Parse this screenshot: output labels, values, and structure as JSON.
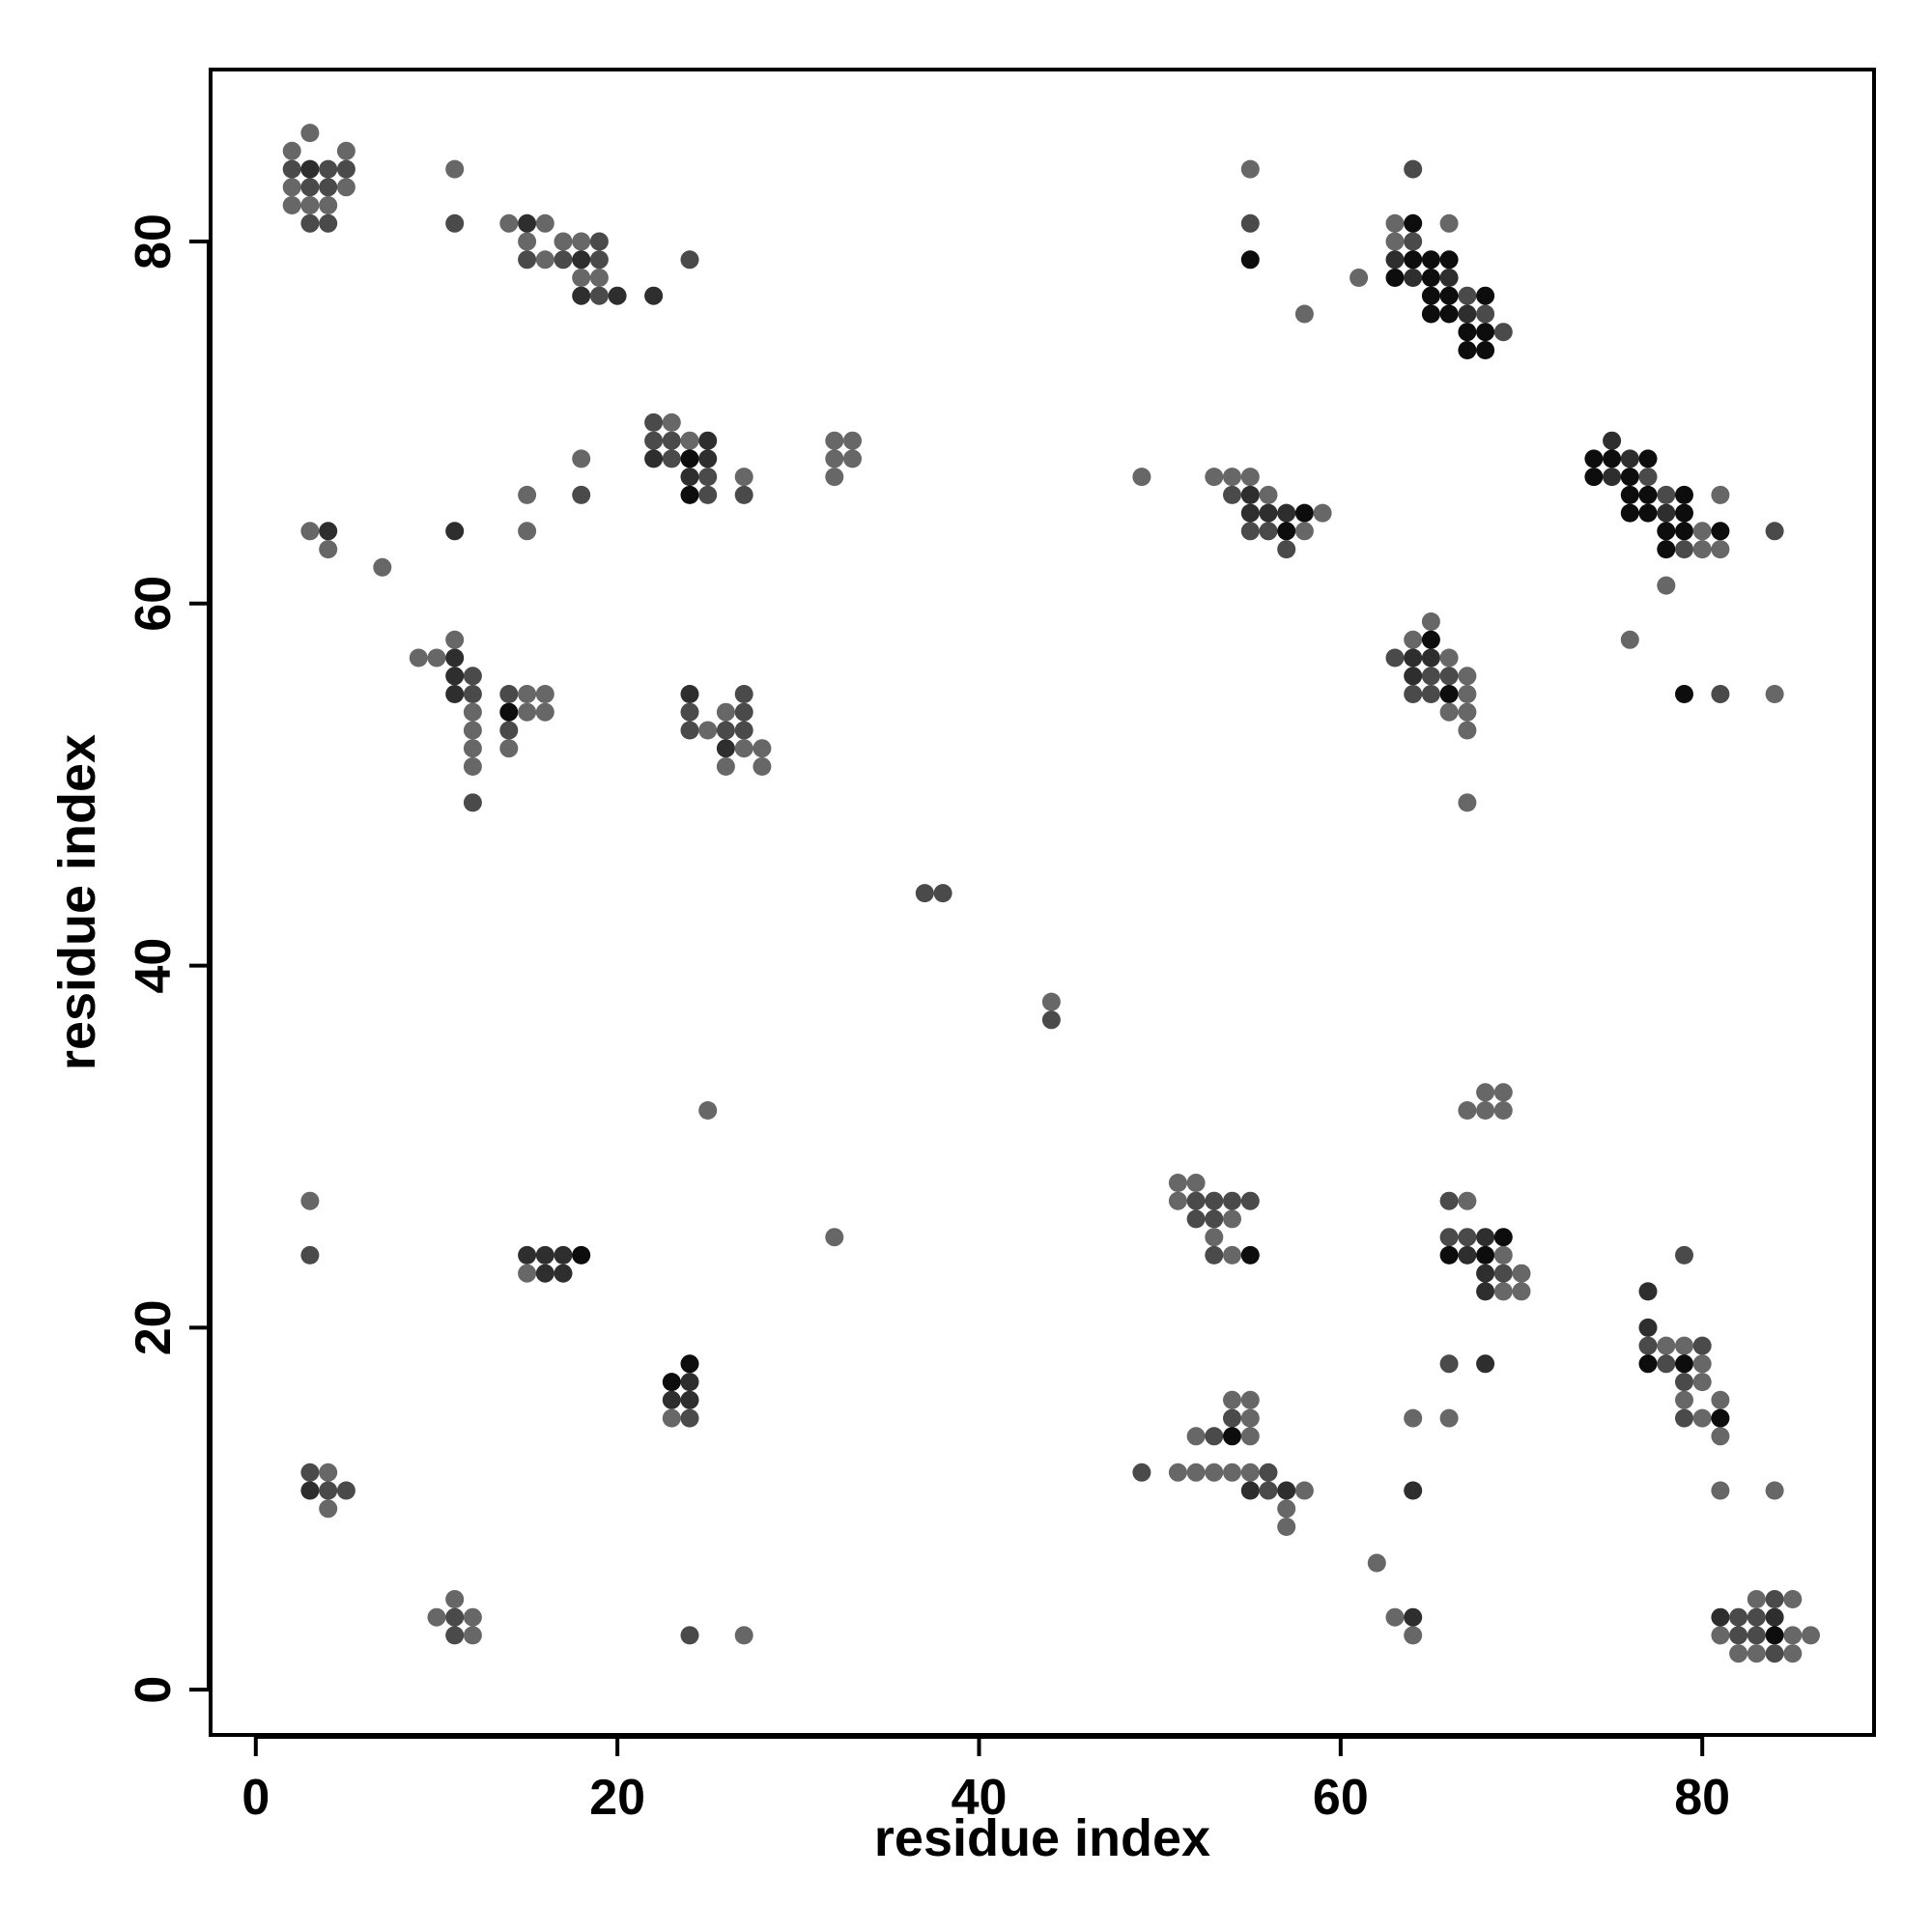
{
  "chart_data": {
    "type": "scatter",
    "title": "",
    "xlabel": "residue index",
    "ylabel": "residue index",
    "xlim": [
      -2.5,
      89.5
    ],
    "ylim": [
      -2.5,
      89.5
    ],
    "xticks": [
      0,
      20,
      40,
      60,
      80
    ],
    "yticks": [
      0,
      20,
      40,
      60,
      80
    ],
    "grid": false,
    "legend": "none",
    "shade_colors": [
      "#0d0d0d",
      "#2e2e2e",
      "#4a4a4a",
      "#676767"
    ],
    "points": [
      [
        2,
        85,
        3
      ],
      [
        3,
        86,
        3
      ],
      [
        5,
        85,
        3
      ],
      [
        2,
        84,
        2
      ],
      [
        3,
        84,
        1
      ],
      [
        4,
        84,
        2
      ],
      [
        5,
        84,
        2
      ],
      [
        2,
        83,
        3
      ],
      [
        3,
        83,
        2
      ],
      [
        4,
        83,
        2
      ],
      [
        5,
        83,
        3
      ],
      [
        2,
        82,
        3
      ],
      [
        3,
        82,
        3
      ],
      [
        4,
        82,
        3
      ],
      [
        3,
        81,
        2
      ],
      [
        4,
        81,
        2
      ],
      [
        11,
        84,
        3
      ],
      [
        11,
        81,
        2
      ],
      [
        14,
        81,
        3
      ],
      [
        15,
        81,
        1
      ],
      [
        16,
        81,
        3
      ],
      [
        15,
        80,
        3
      ],
      [
        17,
        80,
        3
      ],
      [
        18,
        80,
        3
      ],
      [
        19,
        80,
        2
      ],
      [
        15,
        79,
        2
      ],
      [
        16,
        79,
        3
      ],
      [
        17,
        79,
        2
      ],
      [
        18,
        79,
        1
      ],
      [
        19,
        79,
        2
      ],
      [
        18,
        78,
        3
      ],
      [
        19,
        78,
        3
      ],
      [
        18,
        77,
        1
      ],
      [
        19,
        77,
        2
      ],
      [
        20,
        77,
        1
      ],
      [
        22,
        77,
        1
      ],
      [
        24,
        79,
        2
      ],
      [
        55,
        84,
        3
      ],
      [
        55,
        81,
        2
      ],
      [
        55,
        79,
        0
      ],
      [
        58,
        76,
        3
      ],
      [
        61,
        78,
        3
      ],
      [
        64,
        84,
        2
      ],
      [
        63,
        81,
        3
      ],
      [
        64,
        81,
        0
      ],
      [
        66,
        81,
        3
      ],
      [
        63,
        80,
        3
      ],
      [
        64,
        80,
        2
      ],
      [
        63,
        79,
        1
      ],
      [
        64,
        79,
        0
      ],
      [
        65,
        79,
        0
      ],
      [
        66,
        79,
        0
      ],
      [
        63,
        78,
        0
      ],
      [
        64,
        78,
        1
      ],
      [
        65,
        78,
        0
      ],
      [
        66,
        78,
        1
      ],
      [
        65,
        77,
        0
      ],
      [
        66,
        77,
        0
      ],
      [
        67,
        77,
        2
      ],
      [
        68,
        77,
        0
      ],
      [
        65,
        76,
        0
      ],
      [
        66,
        76,
        0
      ],
      [
        67,
        76,
        1
      ],
      [
        68,
        76,
        2
      ],
      [
        67,
        75,
        0
      ],
      [
        68,
        75,
        0
      ],
      [
        69,
        75,
        2
      ],
      [
        67,
        74,
        0
      ],
      [
        68,
        74,
        0
      ],
      [
        22,
        70,
        2
      ],
      [
        23,
        70,
        3
      ],
      [
        22,
        69,
        2
      ],
      [
        23,
        69,
        2
      ],
      [
        24,
        69,
        3
      ],
      [
        25,
        69,
        1
      ],
      [
        22,
        68,
        1
      ],
      [
        23,
        68,
        2
      ],
      [
        24,
        68,
        0
      ],
      [
        25,
        68,
        1
      ],
      [
        24,
        67,
        1
      ],
      [
        25,
        67,
        2
      ],
      [
        24,
        66,
        0
      ],
      [
        25,
        66,
        2
      ],
      [
        27,
        67,
        3
      ],
      [
        27,
        66,
        2
      ],
      [
        32,
        69,
        3
      ],
      [
        33,
        69,
        3
      ],
      [
        32,
        68,
        3
      ],
      [
        33,
        68,
        3
      ],
      [
        32,
        67,
        3
      ],
      [
        18,
        68,
        3
      ],
      [
        18,
        66,
        2
      ],
      [
        15,
        66,
        3
      ],
      [
        15,
        64,
        3
      ],
      [
        11,
        64,
        1
      ],
      [
        3,
        64,
        3
      ],
      [
        4,
        64,
        1
      ],
      [
        4,
        63,
        3
      ],
      [
        7,
        62,
        3
      ],
      [
        49,
        67,
        3
      ],
      [
        53,
        67,
        3
      ],
      [
        54,
        67,
        3
      ],
      [
        55,
        67,
        3
      ],
      [
        54,
        66,
        2
      ],
      [
        55,
        66,
        1
      ],
      [
        56,
        66,
        3
      ],
      [
        55,
        65,
        1
      ],
      [
        56,
        65,
        1
      ],
      [
        57,
        65,
        1
      ],
      [
        58,
        65,
        0
      ],
      [
        59,
        65,
        3
      ],
      [
        55,
        64,
        2
      ],
      [
        56,
        64,
        2
      ],
      [
        57,
        64,
        0
      ],
      [
        58,
        64,
        3
      ],
      [
        57,
        63,
        2
      ],
      [
        75,
        69,
        1
      ],
      [
        74,
        68,
        0
      ],
      [
        75,
        68,
        0
      ],
      [
        76,
        68,
        1
      ],
      [
        77,
        68,
        0
      ],
      [
        74,
        67,
        0
      ],
      [
        75,
        67,
        1
      ],
      [
        76,
        67,
        0
      ],
      [
        77,
        67,
        2
      ],
      [
        76,
        66,
        0
      ],
      [
        77,
        66,
        0
      ],
      [
        78,
        66,
        2
      ],
      [
        79,
        66,
        0
      ],
      [
        81,
        66,
        3
      ],
      [
        76,
        65,
        0
      ],
      [
        77,
        65,
        0
      ],
      [
        78,
        65,
        1
      ],
      [
        79,
        65,
        0
      ],
      [
        78,
        64,
        0
      ],
      [
        79,
        64,
        0
      ],
      [
        80,
        64,
        3
      ],
      [
        81,
        64,
        0
      ],
      [
        84,
        64,
        2
      ],
      [
        78,
        63,
        0
      ],
      [
        79,
        63,
        2
      ],
      [
        80,
        63,
        3
      ],
      [
        81,
        63,
        3
      ],
      [
        78,
        61,
        3
      ],
      [
        76,
        58,
        3
      ],
      [
        79,
        55,
        0
      ],
      [
        81,
        55,
        2
      ],
      [
        84,
        55,
        3
      ],
      [
        9,
        57,
        3
      ],
      [
        10,
        57,
        3
      ],
      [
        11,
        57,
        1
      ],
      [
        11,
        58,
        3
      ],
      [
        11,
        56,
        1
      ],
      [
        12,
        56,
        2
      ],
      [
        11,
        55,
        1
      ],
      [
        12,
        55,
        2
      ],
      [
        12,
        54,
        3
      ],
      [
        12,
        53,
        3
      ],
      [
        12,
        52,
        3
      ],
      [
        12,
        51,
        3
      ],
      [
        12,
        49,
        2
      ],
      [
        14,
        55,
        2
      ],
      [
        15,
        55,
        3
      ],
      [
        16,
        55,
        3
      ],
      [
        14,
        54,
        0
      ],
      [
        15,
        54,
        3
      ],
      [
        16,
        54,
        3
      ],
      [
        14,
        53,
        2
      ],
      [
        14,
        52,
        3
      ],
      [
        24,
        55,
        1
      ],
      [
        24,
        54,
        2
      ],
      [
        24,
        53,
        2
      ],
      [
        25,
        53,
        3
      ],
      [
        27,
        55,
        2
      ],
      [
        26,
        54,
        3
      ],
      [
        27,
        54,
        2
      ],
      [
        26,
        53,
        2
      ],
      [
        27,
        53,
        2
      ],
      [
        26,
        52,
        1
      ],
      [
        27,
        52,
        3
      ],
      [
        28,
        52,
        3
      ],
      [
        26,
        51,
        3
      ],
      [
        28,
        51,
        3
      ],
      [
        65,
        59,
        3
      ],
      [
        64,
        58,
        3
      ],
      [
        65,
        58,
        0
      ],
      [
        63,
        57,
        2
      ],
      [
        64,
        57,
        1
      ],
      [
        65,
        57,
        1
      ],
      [
        66,
        57,
        3
      ],
      [
        64,
        56,
        1
      ],
      [
        65,
        56,
        2
      ],
      [
        66,
        56,
        2
      ],
      [
        67,
        56,
        3
      ],
      [
        64,
        55,
        2
      ],
      [
        65,
        55,
        2
      ],
      [
        66,
        55,
        0
      ],
      [
        67,
        55,
        3
      ],
      [
        66,
        54,
        3
      ],
      [
        67,
        54,
        3
      ],
      [
        67,
        53,
        3
      ],
      [
        67,
        49,
        3
      ],
      [
        37,
        44,
        2
      ],
      [
        38,
        44,
        2
      ],
      [
        44,
        38,
        3
      ],
      [
        44,
        37,
        2
      ],
      [
        25,
        32,
        3
      ],
      [
        67,
        32,
        3
      ],
      [
        68,
        33,
        3
      ],
      [
        69,
        33,
        3
      ],
      [
        68,
        32,
        3
      ],
      [
        69,
        32,
        3
      ],
      [
        51,
        28,
        3
      ],
      [
        52,
        28,
        3
      ],
      [
        51,
        27,
        3
      ],
      [
        52,
        27,
        2
      ],
      [
        53,
        27,
        2
      ],
      [
        54,
        27,
        2
      ],
      [
        55,
        27,
        2
      ],
      [
        52,
        26,
        2
      ],
      [
        53,
        26,
        2
      ],
      [
        54,
        26,
        3
      ],
      [
        53,
        25,
        3
      ],
      [
        53,
        24,
        2
      ],
      [
        54,
        24,
        3
      ],
      [
        55,
        24,
        0
      ],
      [
        66,
        27,
        2
      ],
      [
        67,
        27,
        3
      ],
      [
        66,
        25,
        2
      ],
      [
        67,
        25,
        2
      ],
      [
        68,
        25,
        1
      ],
      [
        69,
        25,
        0
      ],
      [
        66,
        24,
        0
      ],
      [
        67,
        24,
        1
      ],
      [
        68,
        24,
        0
      ],
      [
        69,
        24,
        3
      ],
      [
        68,
        23,
        1
      ],
      [
        69,
        23,
        2
      ],
      [
        70,
        23,
        3
      ],
      [
        68,
        22,
        1
      ],
      [
        69,
        22,
        3
      ],
      [
        70,
        22,
        3
      ],
      [
        66,
        18,
        2
      ],
      [
        68,
        18,
        1
      ],
      [
        64,
        15,
        3
      ],
      [
        66,
        15,
        3
      ],
      [
        64,
        11,
        1
      ],
      [
        3,
        27,
        3
      ],
      [
        3,
        24,
        2
      ],
      [
        15,
        24,
        1
      ],
      [
        16,
        24,
        1
      ],
      [
        17,
        24,
        1
      ],
      [
        18,
        24,
        0
      ],
      [
        15,
        23,
        3
      ],
      [
        16,
        23,
        1
      ],
      [
        17,
        23,
        1
      ],
      [
        32,
        25,
        3
      ],
      [
        24,
        18,
        0
      ],
      [
        23,
        17,
        0
      ],
      [
        24,
        17,
        1
      ],
      [
        23,
        16,
        1
      ],
      [
        24,
        16,
        1
      ],
      [
        23,
        15,
        3
      ],
      [
        24,
        15,
        2
      ],
      [
        77,
        22,
        1
      ],
      [
        77,
        20,
        1
      ],
      [
        77,
        19,
        2
      ],
      [
        78,
        19,
        3
      ],
      [
        79,
        19,
        3
      ],
      [
        80,
        19,
        2
      ],
      [
        77,
        18,
        0
      ],
      [
        78,
        18,
        2
      ],
      [
        79,
        18,
        0
      ],
      [
        80,
        18,
        3
      ],
      [
        79,
        17,
        2
      ],
      [
        80,
        17,
        3
      ],
      [
        79,
        16,
        3
      ],
      [
        81,
        16,
        3
      ],
      [
        79,
        15,
        2
      ],
      [
        80,
        15,
        3
      ],
      [
        81,
        15,
        0
      ],
      [
        81,
        14,
        3
      ],
      [
        79,
        24,
        2
      ],
      [
        81,
        11,
        3
      ],
      [
        84,
        11,
        3
      ],
      [
        54,
        16,
        3
      ],
      [
        55,
        16,
        3
      ],
      [
        54,
        15,
        2
      ],
      [
        55,
        15,
        3
      ],
      [
        52,
        14,
        3
      ],
      [
        53,
        14,
        2
      ],
      [
        54,
        14,
        0
      ],
      [
        55,
        14,
        3
      ],
      [
        49,
        12,
        2
      ],
      [
        51,
        12,
        3
      ],
      [
        52,
        12,
        3
      ],
      [
        53,
        12,
        3
      ],
      [
        54,
        12,
        3
      ],
      [
        55,
        12,
        3
      ],
      [
        56,
        12,
        2
      ],
      [
        55,
        11,
        1
      ],
      [
        56,
        11,
        2
      ],
      [
        57,
        11,
        1
      ],
      [
        58,
        11,
        3
      ],
      [
        57,
        10,
        3
      ],
      [
        57,
        9,
        3
      ],
      [
        3,
        12,
        2
      ],
      [
        4,
        12,
        3
      ],
      [
        3,
        11,
        1
      ],
      [
        4,
        11,
        2
      ],
      [
        5,
        11,
        2
      ],
      [
        4,
        10,
        3
      ],
      [
        11,
        5,
        3
      ],
      [
        10,
        4,
        3
      ],
      [
        11,
        4,
        2
      ],
      [
        12,
        4,
        3
      ],
      [
        11,
        3,
        2
      ],
      [
        12,
        3,
        3
      ],
      [
        24,
        3,
        2
      ],
      [
        27,
        3,
        3
      ],
      [
        62,
        7,
        3
      ],
      [
        63,
        4,
        3
      ],
      [
        64,
        4,
        1
      ],
      [
        64,
        3,
        3
      ],
      [
        81,
        4,
        1
      ],
      [
        82,
        4,
        2
      ],
      [
        83,
        4,
        2
      ],
      [
        84,
        4,
        1
      ],
      [
        83,
        5,
        3
      ],
      [
        84,
        5,
        2
      ],
      [
        85,
        5,
        3
      ],
      [
        81,
        3,
        3
      ],
      [
        82,
        3,
        2
      ],
      [
        83,
        3,
        2
      ],
      [
        84,
        3,
        0
      ],
      [
        85,
        3,
        3
      ],
      [
        86,
        3,
        3
      ],
      [
        82,
        2,
        3
      ],
      [
        83,
        2,
        3
      ],
      [
        84,
        2,
        2
      ],
      [
        85,
        2,
        3
      ]
    ]
  }
}
